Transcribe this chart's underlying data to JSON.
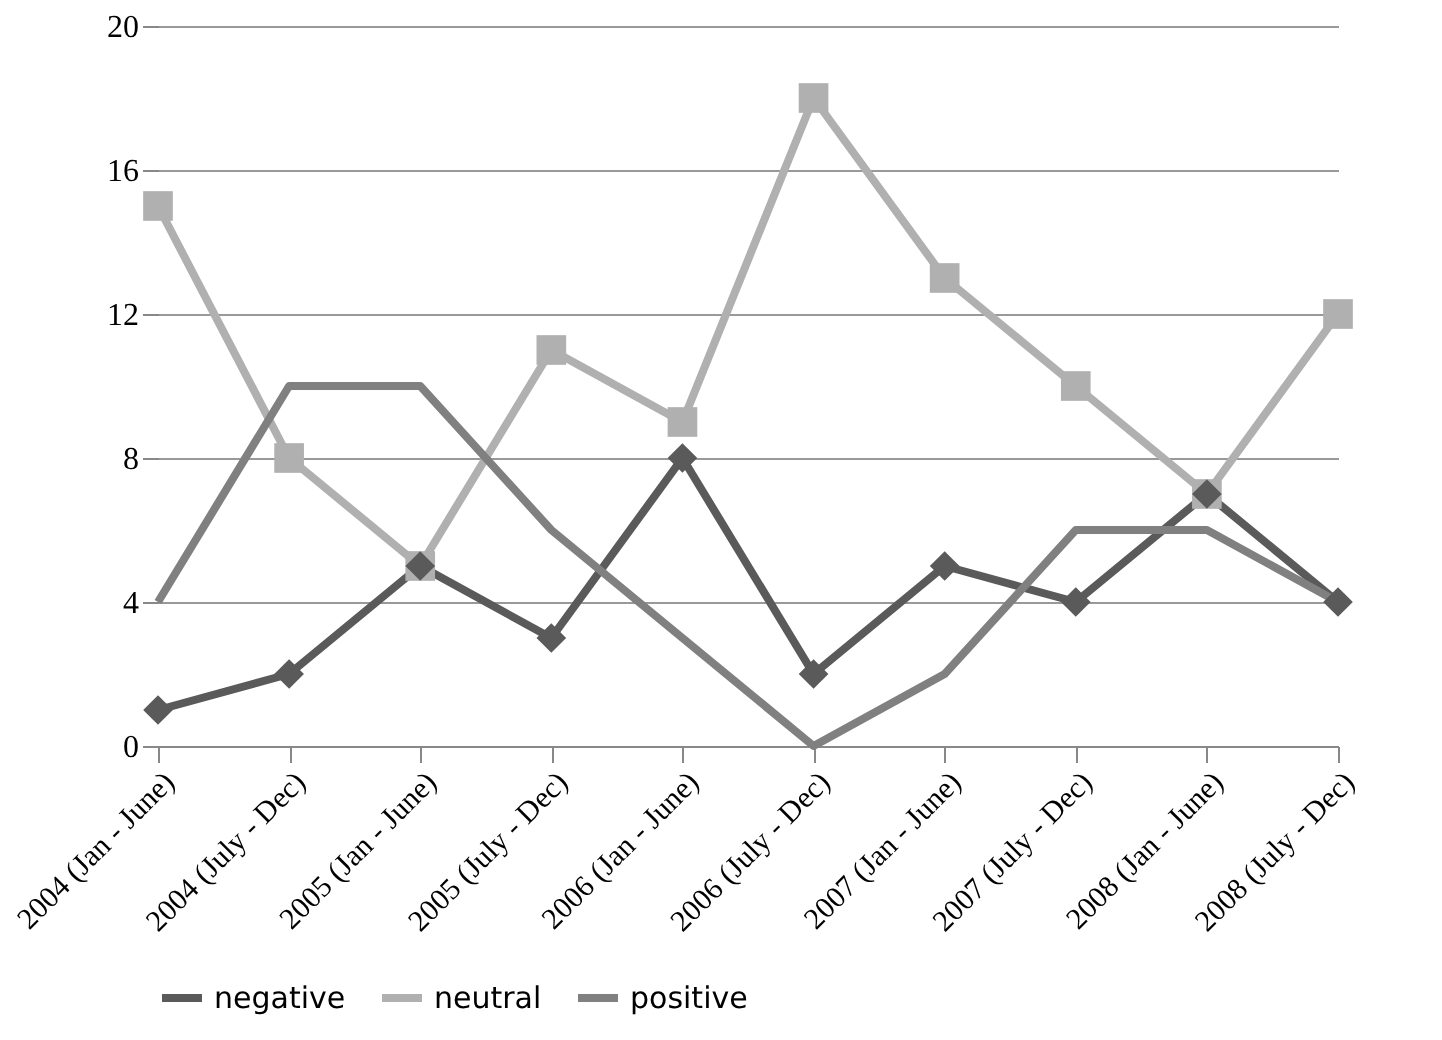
{
  "chart_data": {
    "type": "line",
    "categories": [
      "2004 (Jan - June)",
      "2004 (July - Dec)",
      "2005 (Jan - June)",
      "2005 (July - Dec)",
      "2006 (Jan - June)",
      "2006 (July - Dec)",
      "2007 (Jan - June)",
      "2007 (July - Dec)",
      "2008 (Jan - June)",
      "2008 (July - Dec)"
    ],
    "series": [
      {
        "name": "negative",
        "color": "#5a5a5a",
        "marker": "diamond",
        "values": [
          1,
          2,
          5,
          3,
          8,
          2,
          5,
          4,
          7,
          4
        ]
      },
      {
        "name": "neutral",
        "color": "#b0b0b0",
        "marker": "square",
        "values": [
          15,
          8,
          5,
          11,
          9,
          18,
          13,
          10,
          7,
          12
        ]
      },
      {
        "name": "positive",
        "color": "#808080",
        "marker": "none",
        "values": [
          4,
          10,
          10,
          6,
          3,
          0,
          2,
          6,
          6,
          4
        ]
      }
    ],
    "ylim": [
      0,
      20
    ],
    "yticks": [
      0,
      4,
      8,
      12,
      16,
      20
    ],
    "grid": "y",
    "legend": "bottom",
    "line_style": "solid"
  }
}
